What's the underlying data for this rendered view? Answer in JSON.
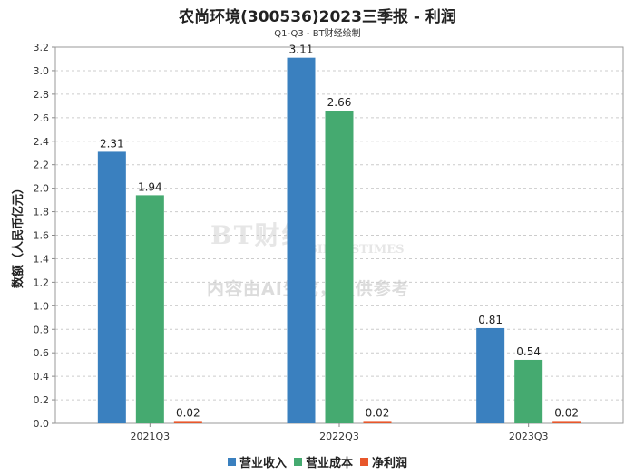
{
  "chart_data": {
    "type": "bar",
    "title": "农尚环境(300536)2023三季报 - 利润",
    "subtitle": "Q1-Q3 - BT财经绘制",
    "xlabel": "",
    "ylabel": "数额（人民币亿元）",
    "categories": [
      "2021Q3",
      "2022Q3",
      "2023Q3"
    ],
    "series": [
      {
        "name": "营业收入",
        "color": "#3a80bf",
        "values": [
          2.31,
          3.11,
          0.81
        ]
      },
      {
        "name": "营业成本",
        "color": "#45aa70",
        "values": [
          1.94,
          2.66,
          0.54
        ]
      },
      {
        "name": "净利润",
        "color": "#e8572b",
        "values": [
          0.02,
          0.02,
          0.02
        ]
      }
    ],
    "value_labels": [
      [
        "2.31",
        "1.94",
        "0.02"
      ],
      [
        "3.11",
        "2.66",
        "0.02"
      ],
      [
        "0.81",
        "0.54",
        "0.02"
      ]
    ],
    "ylim": [
      0,
      3.2
    ],
    "ytick_step": 0.2,
    "yticks": [
      "0.0",
      "0.2",
      "0.4",
      "0.6",
      "0.8",
      "1.0",
      "1.2",
      "1.4",
      "1.6",
      "1.8",
      "2.0",
      "2.2",
      "2.4",
      "2.6",
      "2.8",
      "3.0",
      "3.2"
    ],
    "grid": true,
    "legend_position": "bottom-center"
  },
  "watermark": {
    "brand": "BT财经",
    "brand_sub": "BUSINESSTIMES",
    "ai_notice": "内容由AI生成，仅供参考"
  }
}
